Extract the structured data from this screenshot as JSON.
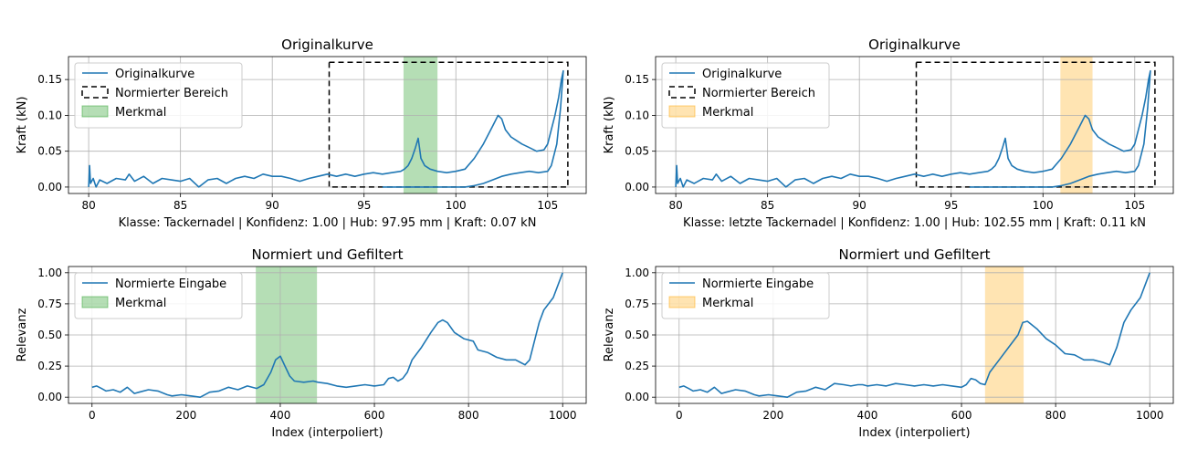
{
  "chart_data": [
    {
      "type": "line",
      "title": "Originalkurve",
      "xlabel": "Klasse: Tackernadel | Konfidenz: 1.00 | Hub: 97.95 mm | Kraft: 0.07 kN",
      "ylabel": "Kraft (kN)",
      "xlim": [
        78.9,
        107.1
      ],
      "ylim": [
        -0.009,
        0.182
      ],
      "xticks": [
        80,
        85,
        90,
        95,
        100,
        105
      ],
      "xtick_labels": [
        "80",
        "85",
        "90",
        "95",
        "100",
        "105"
      ],
      "yticks": [
        0.0,
        0.05,
        0.1,
        0.15
      ],
      "ytick_labels": [
        "0.00",
        "0.05",
        "0.10",
        "0.15"
      ],
      "grid": true,
      "legend": {
        "position": "top-left",
        "entries": [
          "Originalkurve",
          "Normierter Bereich",
          "Merkmal"
        ]
      },
      "series": [
        {
          "name": "Originalkurve",
          "color": "#1f77b4",
          "x": [
            80.0,
            80.05,
            80.1,
            80.25,
            80.4,
            80.6,
            81.0,
            81.5,
            82.0,
            82.2,
            82.5,
            83.0,
            83.5,
            84.0,
            84.5,
            85.0,
            85.5,
            86.0,
            86.5,
            87.0,
            87.5,
            88.0,
            88.5,
            89.0,
            89.5,
            90.0,
            90.5,
            91.0,
            91.5,
            92.0,
            92.5,
            93.0,
            93.5,
            94.0,
            94.5,
            95.0,
            95.5,
            96.0,
            96.5,
            97.0,
            97.2,
            97.4,
            97.6,
            97.8,
            97.95,
            98.1,
            98.3,
            98.6,
            99.0,
            99.5,
            100.0,
            100.5,
            101.0,
            101.5,
            102.0,
            102.3,
            102.5,
            102.7,
            103.0,
            103.3,
            103.6,
            104.0,
            104.4,
            104.8,
            105.0,
            105.2,
            105.4,
            105.6,
            105.75,
            105.85,
            105.7,
            105.5,
            105.2,
            105.0,
            104.5,
            104.0,
            103.5,
            103.0,
            102.5,
            102.0,
            101.5,
            101.0,
            100.5,
            100.0,
            99.0,
            98.0,
            97.0,
            96.0
          ],
          "y": [
            0.0,
            0.03,
            0.005,
            0.012,
            0.0,
            0.01,
            0.005,
            0.012,
            0.01,
            0.018,
            0.008,
            0.015,
            0.005,
            0.012,
            0.01,
            0.008,
            0.012,
            0.0,
            0.01,
            0.012,
            0.005,
            0.012,
            0.015,
            0.012,
            0.018,
            0.015,
            0.015,
            0.012,
            0.008,
            0.012,
            0.015,
            0.018,
            0.015,
            0.018,
            0.015,
            0.018,
            0.02,
            0.018,
            0.02,
            0.022,
            0.025,
            0.03,
            0.04,
            0.055,
            0.068,
            0.04,
            0.03,
            0.025,
            0.022,
            0.02,
            0.022,
            0.025,
            0.04,
            0.06,
            0.085,
            0.1,
            0.095,
            0.08,
            0.07,
            0.065,
            0.06,
            0.055,
            0.05,
            0.052,
            0.06,
            0.08,
            0.1,
            0.125,
            0.15,
            0.162,
            0.11,
            0.06,
            0.03,
            0.022,
            0.02,
            0.022,
            0.02,
            0.018,
            0.015,
            0.01,
            0.005,
            0.002,
            0.0,
            0.0,
            0.0,
            0.0,
            0.0,
            0.0
          ]
        }
      ],
      "normalized_region": {
        "name": "Normierter Bereich",
        "x": [
          93.1,
          106.1
        ],
        "y": [
          0.0,
          0.174
        ]
      },
      "feature_span": {
        "name": "Merkmal",
        "x": [
          97.15,
          99.0
        ],
        "color": "#2ca02c"
      }
    },
    {
      "type": "line",
      "title": "Originalkurve",
      "xlabel": "Klasse: letzte Tackernadel | Konfidenz: 1.00 | Hub: 102.55 mm | Kraft: 0.11 kN",
      "ylabel": "Kraft (kN)",
      "xlim": [
        78.9,
        107.1
      ],
      "ylim": [
        -0.009,
        0.182
      ],
      "xticks": [
        80,
        85,
        90,
        95,
        100,
        105
      ],
      "xtick_labels": [
        "80",
        "85",
        "90",
        "95",
        "100",
        "105"
      ],
      "yticks": [
        0.0,
        0.05,
        0.1,
        0.15
      ],
      "ytick_labels": [
        "0.00",
        "0.05",
        "0.10",
        "0.15"
      ],
      "grid": true,
      "legend": {
        "position": "top-left",
        "entries": [
          "Originalkurve",
          "Normierter Bereich",
          "Merkmal"
        ]
      },
      "series": [
        {
          "name": "Originalkurve",
          "color": "#1f77b4",
          "x": [
            80.0,
            80.05,
            80.1,
            80.25,
            80.4,
            80.6,
            81.0,
            81.5,
            82.0,
            82.2,
            82.5,
            83.0,
            83.5,
            84.0,
            84.5,
            85.0,
            85.5,
            86.0,
            86.5,
            87.0,
            87.5,
            88.0,
            88.5,
            89.0,
            89.5,
            90.0,
            90.5,
            91.0,
            91.5,
            92.0,
            92.5,
            93.0,
            93.5,
            94.0,
            94.5,
            95.0,
            95.5,
            96.0,
            96.5,
            97.0,
            97.2,
            97.4,
            97.6,
            97.8,
            97.95,
            98.1,
            98.3,
            98.6,
            99.0,
            99.5,
            100.0,
            100.5,
            101.0,
            101.5,
            102.0,
            102.3,
            102.5,
            102.7,
            103.0,
            103.3,
            103.6,
            104.0,
            104.4,
            104.8,
            105.0,
            105.2,
            105.4,
            105.6,
            105.75,
            105.85,
            105.7,
            105.5,
            105.2,
            105.0,
            104.5,
            104.0,
            103.5,
            103.0,
            102.5,
            102.0,
            101.5,
            101.0,
            100.5,
            100.0,
            99.0,
            98.0,
            97.0,
            96.0
          ],
          "y": [
            0.0,
            0.03,
            0.005,
            0.012,
            0.0,
            0.01,
            0.005,
            0.012,
            0.01,
            0.018,
            0.008,
            0.015,
            0.005,
            0.012,
            0.01,
            0.008,
            0.012,
            0.0,
            0.01,
            0.012,
            0.005,
            0.012,
            0.015,
            0.012,
            0.018,
            0.015,
            0.015,
            0.012,
            0.008,
            0.012,
            0.015,
            0.018,
            0.015,
            0.018,
            0.015,
            0.018,
            0.02,
            0.018,
            0.02,
            0.022,
            0.025,
            0.03,
            0.04,
            0.055,
            0.068,
            0.04,
            0.03,
            0.025,
            0.022,
            0.02,
            0.022,
            0.025,
            0.04,
            0.06,
            0.085,
            0.1,
            0.095,
            0.08,
            0.07,
            0.065,
            0.06,
            0.055,
            0.05,
            0.052,
            0.06,
            0.08,
            0.1,
            0.125,
            0.15,
            0.162,
            0.11,
            0.06,
            0.03,
            0.022,
            0.02,
            0.022,
            0.02,
            0.018,
            0.015,
            0.01,
            0.005,
            0.002,
            0.0,
            0.0,
            0.0,
            0.0,
            0.0,
            0.0
          ]
        }
      ],
      "normalized_region": {
        "name": "Normierter Bereich",
        "x": [
          93.1,
          106.1
        ],
        "y": [
          0.0,
          0.174
        ]
      },
      "feature_span": {
        "name": "Merkmal",
        "x": [
          100.95,
          102.7
        ],
        "color": "#ffa500"
      }
    },
    {
      "type": "line",
      "title": "Normiert und Gefiltert",
      "xlabel": "Index (interpoliert)",
      "ylabel": "Relevanz",
      "xlim": [
        -50,
        1050
      ],
      "ylim": [
        -0.05,
        1.05
      ],
      "xticks": [
        0,
        200,
        400,
        600,
        800,
        1000
      ],
      "xtick_labels": [
        "0",
        "200",
        "400",
        "600",
        "800",
        "1000"
      ],
      "yticks": [
        0.0,
        0.25,
        0.5,
        0.75,
        1.0
      ],
      "ytick_labels": [
        "0.00",
        "0.25",
        "0.50",
        "0.75",
        "1.00"
      ],
      "grid": true,
      "legend": {
        "position": "top-left",
        "entries": [
          "Normierte Eingabe",
          "Merkmal"
        ]
      },
      "series": [
        {
          "name": "Normierte Eingabe",
          "color": "#1f77b4",
          "x": [
            0,
            10,
            20,
            30,
            45,
            60,
            75,
            90,
            100,
            120,
            140,
            160,
            170,
            190,
            210,
            230,
            250,
            270,
            290,
            310,
            330,
            350,
            365,
            380,
            390,
            400,
            410,
            420,
            430,
            450,
            470,
            480,
            500,
            520,
            540,
            560,
            580,
            600,
            620,
            630,
            640,
            650,
            660,
            670,
            680,
            700,
            720,
            735,
            745,
            755,
            770,
            790,
            810,
            820,
            840,
            860,
            880,
            900,
            910,
            920,
            930,
            940,
            950,
            960,
            980,
            1000
          ],
          "y": [
            0.08,
            0.09,
            0.07,
            0.05,
            0.06,
            0.04,
            0.08,
            0.03,
            0.04,
            0.06,
            0.05,
            0.02,
            0.01,
            0.02,
            0.01,
            0.0,
            0.04,
            0.05,
            0.08,
            0.06,
            0.09,
            0.07,
            0.1,
            0.2,
            0.3,
            0.33,
            0.25,
            0.17,
            0.13,
            0.12,
            0.13,
            0.12,
            0.11,
            0.09,
            0.08,
            0.09,
            0.1,
            0.09,
            0.1,
            0.15,
            0.16,
            0.13,
            0.15,
            0.2,
            0.3,
            0.4,
            0.52,
            0.6,
            0.62,
            0.6,
            0.52,
            0.47,
            0.45,
            0.38,
            0.36,
            0.32,
            0.3,
            0.3,
            0.28,
            0.26,
            0.3,
            0.45,
            0.6,
            0.7,
            0.8,
            1.0
          ]
        }
      ],
      "feature_span": {
        "name": "Merkmal",
        "x": [
          348,
          478
        ],
        "color": "#2ca02c"
      }
    },
    {
      "type": "line",
      "title": "Normiert und Gefiltert",
      "xlabel": "Index (interpoliert)",
      "ylabel": "Relevanz",
      "xlim": [
        -50,
        1050
      ],
      "ylim": [
        -0.05,
        1.05
      ],
      "xticks": [
        0,
        200,
        400,
        600,
        800,
        1000
      ],
      "xtick_labels": [
        "0",
        "200",
        "400",
        "600",
        "800",
        "1000"
      ],
      "yticks": [
        0.0,
        0.25,
        0.5,
        0.75,
        1.0
      ],
      "ytick_labels": [
        "0.00",
        "0.25",
        "0.50",
        "0.75",
        "1.00"
      ],
      "grid": true,
      "legend": {
        "position": "top-left",
        "entries": [
          "Normierte Eingabe",
          "Merkmal"
        ]
      },
      "series": [
        {
          "name": "Normierte Eingabe",
          "color": "#1f77b4",
          "x": [
            0,
            10,
            20,
            30,
            45,
            60,
            75,
            90,
            100,
            120,
            140,
            160,
            170,
            190,
            210,
            230,
            250,
            270,
            290,
            310,
            330,
            350,
            365,
            380,
            390,
            400,
            420,
            440,
            460,
            480,
            500,
            520,
            540,
            560,
            580,
            600,
            610,
            620,
            630,
            640,
            650,
            660,
            680,
            700,
            720,
            730,
            740,
            760,
            780,
            800,
            820,
            840,
            860,
            880,
            900,
            915,
            930,
            945,
            960,
            980,
            1000
          ],
          "y": [
            0.08,
            0.09,
            0.07,
            0.05,
            0.06,
            0.04,
            0.08,
            0.03,
            0.04,
            0.06,
            0.05,
            0.02,
            0.01,
            0.02,
            0.01,
            0.0,
            0.04,
            0.05,
            0.08,
            0.06,
            0.11,
            0.1,
            0.09,
            0.1,
            0.1,
            0.09,
            0.1,
            0.09,
            0.11,
            0.1,
            0.09,
            0.1,
            0.09,
            0.1,
            0.09,
            0.08,
            0.1,
            0.15,
            0.14,
            0.11,
            0.1,
            0.2,
            0.3,
            0.4,
            0.5,
            0.6,
            0.61,
            0.55,
            0.47,
            0.42,
            0.35,
            0.34,
            0.3,
            0.3,
            0.28,
            0.26,
            0.4,
            0.6,
            0.7,
            0.8,
            1.0
          ]
        }
      ],
      "feature_span": {
        "name": "Merkmal",
        "x": [
          650,
          732
        ],
        "color": "#ffa500"
      }
    }
  ]
}
